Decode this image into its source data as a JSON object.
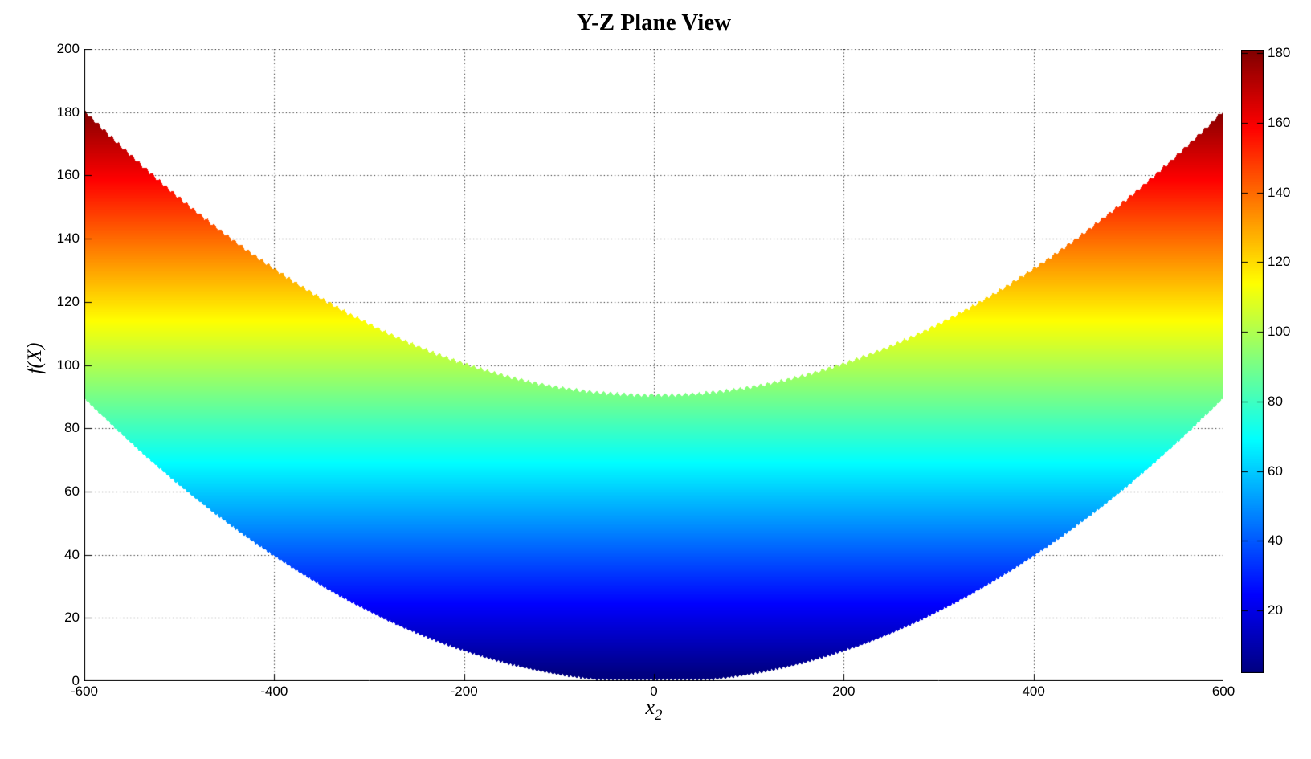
{
  "chart_data": {
    "type": "area",
    "title": "Y-Z Plane View",
    "xlabel_base": "x",
    "xlabel_sub": "2",
    "ylabel": "f(X)",
    "xlim": [
      -600,
      600
    ],
    "ylim": [
      0,
      200
    ],
    "x_ticks": [
      -600,
      -400,
      -200,
      0,
      200,
      400,
      600
    ],
    "y_ticks": [
      0,
      20,
      40,
      60,
      80,
      100,
      120,
      140,
      160,
      180,
      200
    ],
    "grid": "dotted",
    "description": "Y-Z plane (side) view of the 3D surface f(X) = (x1^2 + x2^2)/4000 over x1, x2 in [-600, 600]; the projected band lies between the lower envelope f = x2^2/4000 and the upper envelope f = 90 + x2^2/4000, shaded by height with the jet colormap; mesh faceting gives sawtooth band edges",
    "x": [
      -600,
      -500,
      -400,
      -300,
      -200,
      -100,
      0,
      100,
      200,
      300,
      400,
      500,
      600
    ],
    "f_lower": [
      90,
      62.5,
      40,
      22.5,
      10,
      2.5,
      0,
      2.5,
      10,
      22.5,
      40,
      62.5,
      90
    ],
    "f_upper": [
      180,
      152.5,
      130,
      112.5,
      100,
      92.5,
      90,
      92.5,
      100,
      112.5,
      130,
      152.5,
      180
    ],
    "colormap": "jet",
    "color_range": [
      2,
      181
    ],
    "colorbar_ticks": [
      20,
      40,
      60,
      80,
      100,
      120,
      140,
      160,
      180
    ],
    "colormap_stops": {
      "dark_blue": "#00008F",
      "blue": "#0000FF",
      "cyan": "#00FFFF",
      "green": "#7CFC5E",
      "yellow": "#FFFF00",
      "orange": "#FF8C00",
      "red": "#FF0000",
      "dark_red": "#800000"
    },
    "axis_color": "#000000",
    "background_color": "#FFFFFF",
    "legend": "none (colorbar on right)"
  }
}
